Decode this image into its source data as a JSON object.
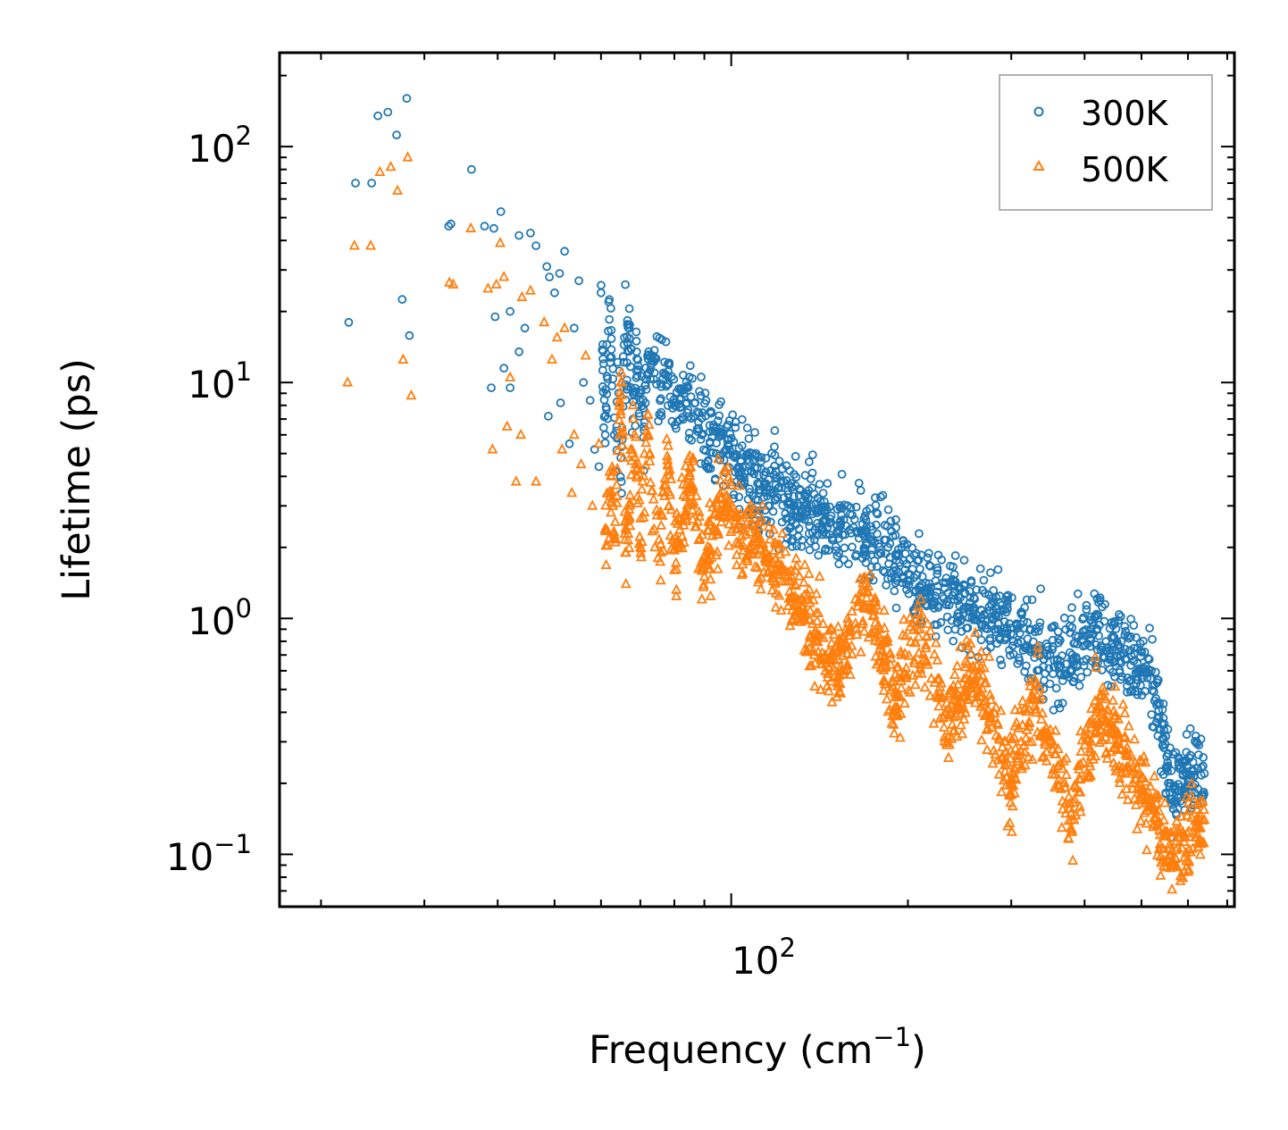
{
  "chart_data": {
    "type": "scatter",
    "title": "",
    "xlabel": "Frequency (cm",
    "xlabel_sup": "−1",
    "xlabel_suffix": ")",
    "ylabel": "Lifetime (ps)",
    "xscale": "log",
    "yscale": "log",
    "xlim": [
      17,
      720
    ],
    "ylim": [
      0.06,
      250
    ],
    "x_ticks": [
      {
        "base": "10",
        "exp": "2",
        "value": 100
      }
    ],
    "y_ticks": [
      {
        "base": "10",
        "exp": "−1",
        "value": 0.1
      },
      {
        "base": "10",
        "exp": "0",
        "value": 1
      },
      {
        "base": "10",
        "exp": "1",
        "value": 10
      },
      {
        "base": "10",
        "exp": "2",
        "value": 100
      }
    ],
    "legend_position": "top-right",
    "series": [
      {
        "name": "300K",
        "marker": "circle",
        "color": "#1f77b4",
        "points": [
          [
            22.3,
            18
          ],
          [
            22.9,
            70
          ],
          [
            24.4,
            70
          ],
          [
            25.0,
            135
          ],
          [
            26.0,
            140
          ],
          [
            26.9,
            112
          ],
          [
            27.5,
            22.5
          ],
          [
            28.0,
            160
          ],
          [
            28.3,
            15.8
          ],
          [
            33.0,
            46
          ],
          [
            33.3,
            47
          ],
          [
            36.1,
            80
          ],
          [
            38.0,
            46
          ],
          [
            39.0,
            9.5
          ],
          [
            39.4,
            45
          ],
          [
            39.6,
            19
          ],
          [
            40.5,
            53
          ],
          [
            41.0,
            11.5
          ],
          [
            42.0,
            20
          ],
          [
            42.0,
            9.5
          ],
          [
            43.5,
            13.5
          ],
          [
            43.5,
            42
          ],
          [
            44.5,
            17
          ],
          [
            45.5,
            43
          ],
          [
            46.5,
            38
          ],
          [
            48.5,
            31
          ],
          [
            48.8,
            7.2
          ],
          [
            49.0,
            28
          ],
          [
            50.0,
            24
          ],
          [
            51.0,
            29
          ],
          [
            51.2,
            8.2
          ],
          [
            52.0,
            36
          ],
          [
            53.0,
            5.5
          ],
          [
            54.0,
            17
          ],
          [
            55.0,
            27
          ],
          [
            56.0,
            10
          ],
          [
            57.5,
            8.4
          ],
          [
            58.5,
            5.2
          ],
          [
            59.5,
            4.4
          ],
          [
            60.0,
            24
          ],
          [
            61.0,
            6.0
          ],
          [
            62.0,
            18.5
          ],
          [
            62.5,
            13.8
          ],
          [
            63.5,
            4.2
          ],
          [
            64.5,
            11.2
          ],
          [
            65.0,
            3.8
          ],
          [
            66.0,
            26
          ],
          [
            66.0,
            9.8
          ],
          [
            67.0,
            17
          ],
          [
            68.0,
            7.0
          ],
          [
            69.0,
            13.5
          ],
          [
            70.0,
            9.0
          ],
          [
            71.0,
            6.5
          ],
          [
            72.0,
            13.0
          ],
          [
            74.0,
            11.0
          ],
          [
            76.0,
            9.6
          ],
          [
            78.0,
            12.0
          ],
          [
            80.0,
            8.0
          ],
          [
            84.0,
            8.2
          ],
          [
            88.0,
            6.4
          ],
          [
            92.0,
            5.6
          ],
          [
            98.0,
            5.2
          ],
          [
            104.0,
            4.2
          ],
          [
            115.0,
            3.6
          ],
          [
            125.0,
            3.1
          ],
          [
            140.0,
            2.8
          ],
          [
            160.0,
            2.3
          ],
          [
            185.0,
            2.0
          ],
          [
            210.0,
            1.35
          ],
          [
            240.0,
            1.2
          ],
          [
            280.0,
            1.0
          ],
          [
            320.0,
            0.82
          ],
          [
            360.0,
            0.67
          ],
          [
            420.0,
            0.9
          ],
          [
            460.0,
            0.75
          ],
          [
            520.0,
            0.6
          ],
          [
            560.0,
            0.2
          ],
          [
            640.0,
            0.22
          ]
        ]
      },
      {
        "name": "500K",
        "marker": "triangle",
        "color": "#ff7f0e",
        "points": [
          [
            22.2,
            10
          ],
          [
            22.8,
            38
          ],
          [
            24.3,
            38
          ],
          [
            25.2,
            78
          ],
          [
            26.3,
            82
          ],
          [
            27.0,
            65
          ],
          [
            27.6,
            12.5
          ],
          [
            28.1,
            90
          ],
          [
            28.5,
            8.8
          ],
          [
            33.1,
            26.5
          ],
          [
            33.6,
            26
          ],
          [
            36.0,
            45
          ],
          [
            38.5,
            25
          ],
          [
            39.2,
            5.2
          ],
          [
            39.8,
            26
          ],
          [
            40.4,
            39
          ],
          [
            41.0,
            28
          ],
          [
            41.5,
            6.5
          ],
          [
            42.0,
            10.5
          ],
          [
            43.0,
            3.8
          ],
          [
            43.8,
            6.0
          ],
          [
            44.0,
            23
          ],
          [
            45.5,
            24.5
          ],
          [
            46.5,
            3.8
          ],
          [
            48.0,
            18
          ],
          [
            49.5,
            12.5
          ],
          [
            50.5,
            15.5
          ],
          [
            51.5,
            5.2
          ],
          [
            52.0,
            17
          ],
          [
            53.5,
            3.4
          ],
          [
            54.0,
            6.0
          ],
          [
            55.5,
            4.5
          ],
          [
            56.5,
            13
          ],
          [
            58.0,
            3.0
          ],
          [
            59.5,
            5.5
          ],
          [
            61.0,
            2.4
          ],
          [
            62.5,
            4.0
          ],
          [
            63.5,
            2.1
          ],
          [
            65.0,
            11
          ],
          [
            66.0,
            1.9
          ],
          [
            67.0,
            2.7
          ],
          [
            68.0,
            8.0
          ],
          [
            70.0,
            2.0
          ],
          [
            72.0,
            6.0
          ],
          [
            75.0,
            1.8
          ],
          [
            78.0,
            4.5
          ],
          [
            80.0,
            1.6
          ],
          [
            85.0,
            4.0
          ],
          [
            90.0,
            1.5
          ],
          [
            96.0,
            3.2
          ],
          [
            104.0,
            2.4
          ],
          [
            115.0,
            1.8
          ],
          [
            130.0,
            1.2
          ],
          [
            140.0,
            0.85
          ],
          [
            150.0,
            0.6
          ],
          [
            170.0,
            1.3
          ],
          [
            190.0,
            0.42
          ],
          [
            210.0,
            0.9
          ],
          [
            230.0,
            0.38
          ],
          [
            260.0,
            0.6
          ],
          [
            300.0,
            0.2
          ],
          [
            330.0,
            0.45
          ],
          [
            380.0,
            0.14
          ],
          [
            420.0,
            0.42
          ],
          [
            460.0,
            0.28
          ],
          [
            520.0,
            0.16
          ],
          [
            560.0,
            0.1
          ],
          [
            640.0,
            0.14
          ]
        ]
      }
    ]
  }
}
